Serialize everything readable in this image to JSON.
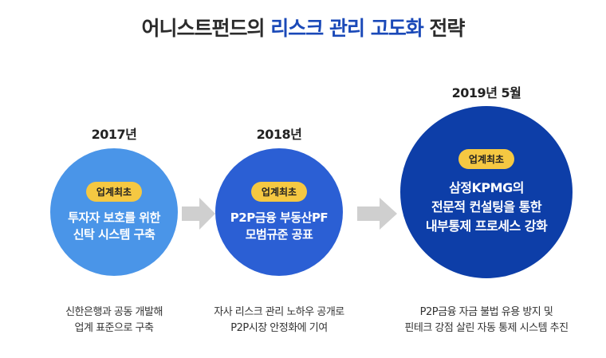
{
  "title": {
    "prefix": "어니스트펀드의",
    "highlight": "리스크 관리 고도화",
    "suffix": "전략"
  },
  "steps": [
    {
      "year": "2017년",
      "badge": "업계최초",
      "lines": [
        "투자자 보호를 위한",
        "신탁 시스템 구축"
      ],
      "desc": [
        "신한은행과 공동 개발해",
        "업계 표준으로 구축"
      ],
      "color": "#4a95e8"
    },
    {
      "year": "2018년",
      "badge": "업계최초",
      "lines": [
        "P2P금융 부동산PF",
        "모범규준 공표"
      ],
      "desc": [
        "자사 리스크 관리 노하우 공개로",
        "P2P시장 안정화에 기여"
      ],
      "color": "#2b5fd4"
    },
    {
      "year": "2019년 5월",
      "badge": "업계최초",
      "lines": [
        "삼정KPMG의",
        "전문적 컨설팅을 통한",
        "내부통제 프로세스 강화"
      ],
      "desc": [
        "P2P금융 자금 불법 유용 방지 및",
        "핀테크 강점 살린 자동 통제 시스템 추진"
      ],
      "color": "#0d3ea8"
    }
  ],
  "badge_color": "#f5c842",
  "arrow_color": "#cfcfcf"
}
